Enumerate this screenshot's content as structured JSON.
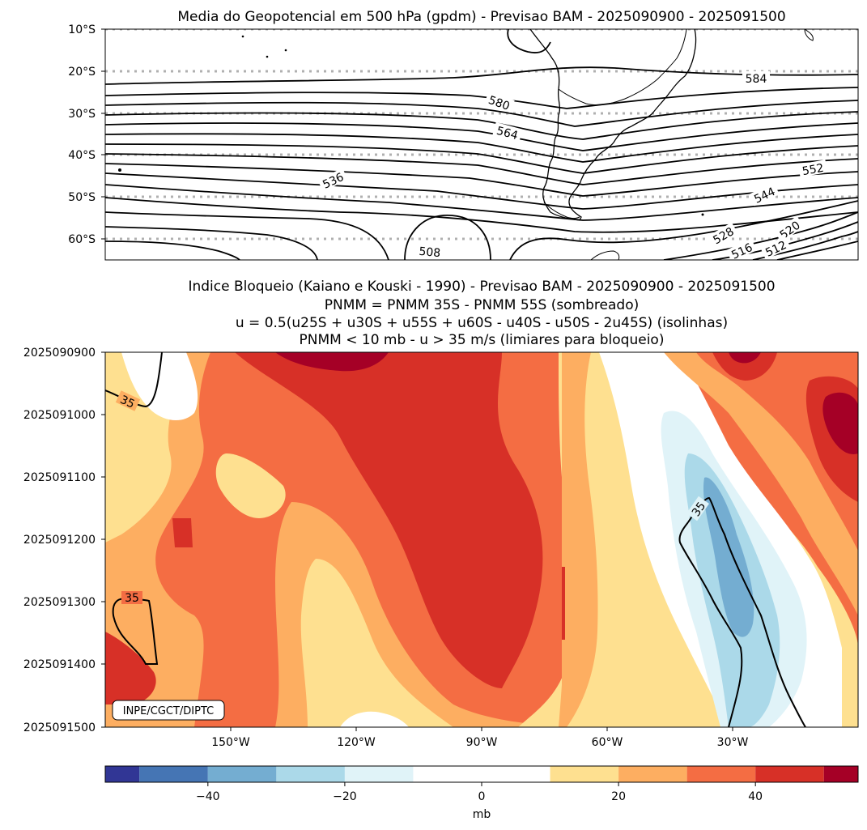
{
  "chart_data": [
    {
      "type": "contour-map",
      "title": "Media do Geopotencial em 500 hPa (gpdm) - Previsao BAM - 2025090900 - 2025091500",
      "y_ticks": [
        "10°S",
        "20°S",
        "30°S",
        "40°S",
        "50°S",
        "60°S"
      ],
      "lat_range": [
        -65,
        -10
      ],
      "lon_range": [
        -180,
        0
      ],
      "contour_labels": [
        "584",
        "580",
        "564",
        "536",
        "552",
        "544",
        "528",
        "520",
        "516",
        "512",
        "508"
      ]
    },
    {
      "type": "heatmap",
      "title_lines": [
        "Indice Bloqueio (Kaiano e Kouski - 1990) - Previsao BAM - 2025090900 - 2025091500",
        "PNMM = PNMM 35S - PNMM 55S (sombreado)",
        "u = 0.5(u25S + u30S + u55S + u60S - u40S - u50S - 2u45S) (isolinhas)",
        "PNMM < 10 mb - u > 35 m/s (limiares para bloqueio)"
      ],
      "y_ticks": [
        "2025090900",
        "2025091000",
        "2025091100",
        "2025091200",
        "2025091300",
        "2025091400",
        "2025091500"
      ],
      "x_ticks": [
        "150°W",
        "120°W",
        "90°W",
        "60°W",
        "30°W"
      ],
      "x_tick_lon": [
        -150,
        -120,
        -90,
        -60,
        -30
      ],
      "lon_range": [
        -180,
        0
      ],
      "contour_labels": [
        "35",
        "35",
        "35"
      ],
      "credit": "INPE/CGCT/DIPTC"
    }
  ],
  "colorbar": {
    "label": "mb",
    "ticks": [
      "−40",
      "−20",
      "0",
      "20",
      "40"
    ],
    "tick_values": [
      -40,
      -20,
      0,
      20,
      40
    ],
    "range": [
      -55,
      55
    ],
    "levels": [
      -55,
      -50,
      -40,
      -30,
      -20,
      -10,
      10,
      20,
      30,
      40,
      50,
      55
    ],
    "colors": [
      "#313695",
      "#4575b4",
      "#74add1",
      "#abd9e9",
      "#e0f3f8",
      "#ffffff",
      "#fee090",
      "#fdae61",
      "#f46d43",
      "#d73027",
      "#a50026"
    ]
  }
}
